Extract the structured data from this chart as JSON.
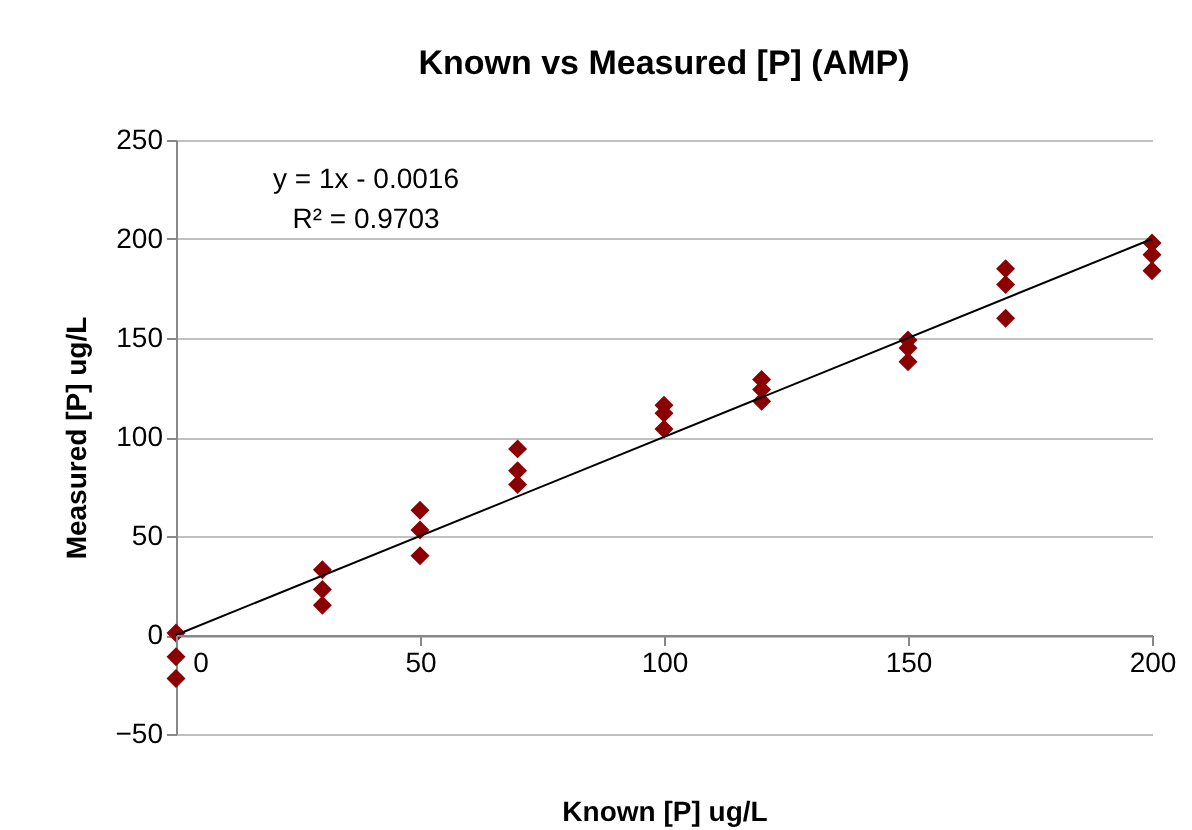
{
  "chart_data": {
    "type": "scatter",
    "title": "Known vs Measured [P] (AMP)",
    "xlabel": "Known [P] ug/L",
    "ylabel": "Measured [P] ug/L",
    "annotations": [
      "y = 1x - 0.0016",
      "R² = 0.9703"
    ],
    "xlim": [
      0,
      200
    ],
    "xticks": [
      0,
      50,
      100,
      150,
      200
    ],
    "ylim": [
      -50,
      250
    ],
    "yticks": [
      -50,
      0,
      50,
      100,
      150,
      200,
      250
    ],
    "grid": "y",
    "series": [
      {
        "color": "#8b0000",
        "marker": "diamond",
        "x": [
          0,
          0,
          0,
          30,
          30,
          30,
          50,
          50,
          50,
          70,
          70,
          70,
          100,
          100,
          100,
          120,
          120,
          120,
          150,
          150,
          150,
          170,
          170,
          170,
          200,
          200,
          200
        ],
        "values": [
          1,
          -11,
          -22,
          33,
          23,
          15,
          63,
          53,
          40,
          94,
          83,
          76,
          116,
          112,
          104,
          129,
          124,
          118,
          149,
          145,
          138,
          185,
          177,
          160,
          198,
          192,
          184
        ]
      },
      {
        "type": "line",
        "color": "#000000",
        "x": [
          0,
          200
        ],
        "values": [
          0,
          200
        ]
      }
    ]
  }
}
